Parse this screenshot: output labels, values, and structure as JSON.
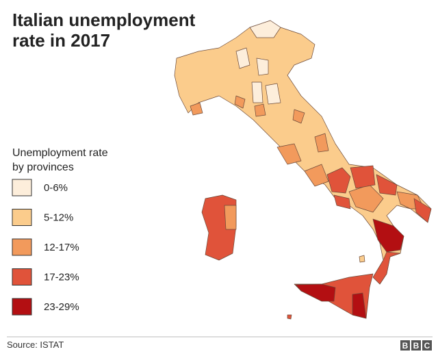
{
  "header": {
    "title_lines": [
      "Italian unemployment",
      "rate in 2017"
    ]
  },
  "legend": {
    "title_lines": [
      "Unemployment rate",
      "by provinces"
    ],
    "items": [
      {
        "label": "0-6%",
        "color": "#fdeedb"
      },
      {
        "label": "5-12%",
        "color": "#fbcc8c"
      },
      {
        "label": "12-17%",
        "color": "#f29a5c"
      },
      {
        "label": "17-23%",
        "color": "#e0533a"
      },
      {
        "label": "23-29%",
        "color": "#b30f12"
      }
    ]
  },
  "footer": {
    "source": "Source: ISTAT",
    "logo": [
      "B",
      "B",
      "C"
    ]
  }
}
